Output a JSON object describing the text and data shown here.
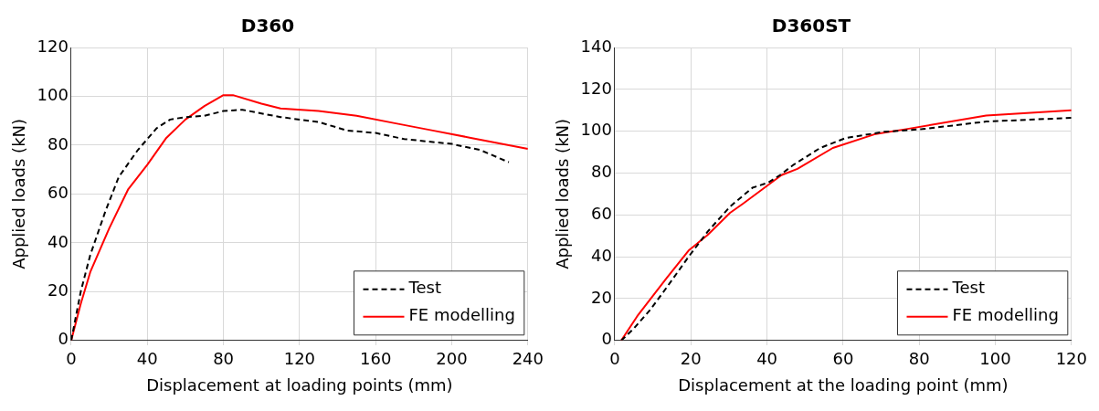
{
  "chart_data": [
    {
      "type": "line",
      "title": "D360",
      "xlabel": "Displacement at loading points (mm)",
      "ylabel": "Applied loads (kN)",
      "xlim": [
        0,
        240
      ],
      "xticks": [
        0,
        40,
        80,
        120,
        160,
        200,
        240
      ],
      "ylim": [
        0,
        120
      ],
      "yticks": [
        0,
        20,
        40,
        60,
        80,
        100,
        120
      ],
      "grid": true,
      "legend": "bottom right",
      "marker": "none",
      "series": [
        {
          "name": "Test",
          "color": "#000000",
          "line_style": "dashed",
          "x": [
            0,
            5,
            10,
            18,
            25,
            35,
            45,
            52,
            60,
            70,
            80,
            90,
            100,
            110,
            130,
            145,
            160,
            175,
            200,
            215,
            230
          ],
          "values": [
            0,
            20,
            35,
            53,
            67,
            78,
            87,
            90.5,
            91.5,
            92,
            94,
            94.5,
            93,
            91.5,
            89.5,
            86,
            85,
            82.5,
            80.5,
            78,
            73
          ]
        },
        {
          "name": "FE modelling",
          "color": "#ff0000",
          "line_style": "solid",
          "x": [
            0,
            5,
            10,
            20,
            30,
            40,
            50,
            60,
            70,
            80,
            85,
            100,
            110,
            130,
            150,
            170,
            190,
            210,
            230,
            240
          ],
          "values": [
            0,
            15,
            28,
            46,
            62,
            72,
            83,
            90.5,
            96,
            100.5,
            100.5,
            97,
            95,
            94,
            92,
            89,
            86,
            83,
            80,
            78.5
          ]
        }
      ]
    },
    {
      "type": "line",
      "title": "D360ST",
      "xlabel": "Displacement at the loading point (mm)",
      "ylabel": "Applied loads (kN)",
      "xlim": [
        0,
        120
      ],
      "xticks": [
        0,
        20,
        40,
        60,
        80,
        100,
        120
      ],
      "ylim": [
        0,
        140
      ],
      "yticks": [
        0,
        20,
        40,
        60,
        80,
        100,
        120,
        140
      ],
      "grid": true,
      "legend": "bottom right",
      "marker": "none",
      "series": [
        {
          "name": "Test",
          "color": "#000000",
          "line_style": "dashed",
          "x": [
            1.7,
            5,
            9.3,
            13.5,
            19.4,
            24.4,
            30.3,
            36.2,
            40.4,
            43.4,
            47,
            54,
            60.6,
            70.7,
            80.8,
            97.6,
            120
          ],
          "values": [
            0,
            5.7,
            14.6,
            25,
            40,
            52,
            64,
            73,
            75.5,
            79,
            84,
            92,
            96.7,
            99.7,
            101,
            104.6,
            106.4
          ]
        },
        {
          "name": "FE modelling",
          "color": "#ff0000",
          "line_style": "solid",
          "x": [
            1.7,
            5.9,
            13.5,
            19.4,
            24.4,
            30.3,
            33.7,
            43.8,
            48,
            57.3,
            68.2,
            76.6,
            97.6,
            120
          ],
          "values": [
            0,
            11.6,
            29.5,
            43,
            50.4,
            61,
            65.4,
            79,
            82,
            92,
            98.5,
            101,
            107.5,
            110
          ]
        }
      ]
    }
  ]
}
